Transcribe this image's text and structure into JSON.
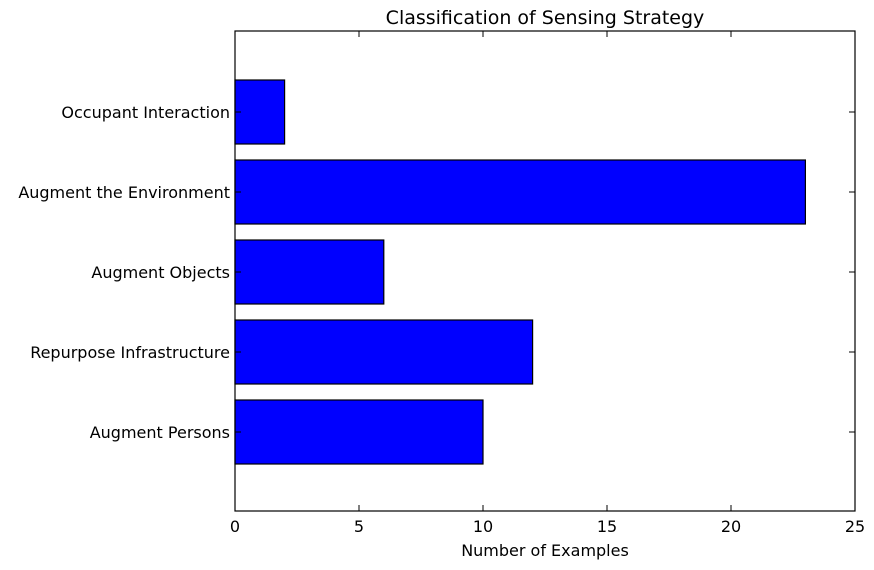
{
  "chart_data": {
    "type": "bar",
    "orientation": "horizontal",
    "title": "Classification of Sensing Strategy",
    "xlabel": "Number of Examples",
    "ylabel": "",
    "categories": [
      "Augment Persons",
      "Repurpose Infrastructure",
      "Augment Objects",
      "Augment the Environment",
      "Occupant Interaction"
    ],
    "values": [
      10,
      12,
      6,
      23,
      2
    ],
    "xlim": [
      0,
      25
    ],
    "xticks": [
      0,
      5,
      10,
      15,
      20,
      25
    ],
    "grid": false,
    "bar_color": "#0000ff"
  }
}
